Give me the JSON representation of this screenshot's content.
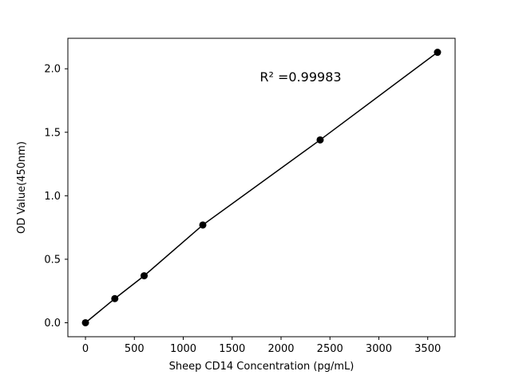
{
  "chart_data": {
    "type": "scatter",
    "title": "",
    "xlabel": "Sheep CD14 Concentration (pg/mL)",
    "ylabel": "OD Value(450nm)",
    "x": [
      0,
      300,
      600,
      1200,
      2400,
      3600
    ],
    "y": [
      0.0,
      0.19,
      0.37,
      0.77,
      1.44,
      2.13
    ],
    "xticks": [
      0,
      500,
      1000,
      1500,
      2000,
      2500,
      3000,
      3500
    ],
    "yticks": [
      0.0,
      0.5,
      1.0,
      1.5,
      2.0
    ],
    "xlim": [
      -180,
      3780
    ],
    "ylim": [
      -0.11,
      2.24
    ],
    "grid": false,
    "legend": null,
    "line_color": "#000000",
    "marker_color": "#000000",
    "annotation": {
      "text": "R² =0.99983",
      "x": 2200,
      "y": 1.9
    }
  }
}
